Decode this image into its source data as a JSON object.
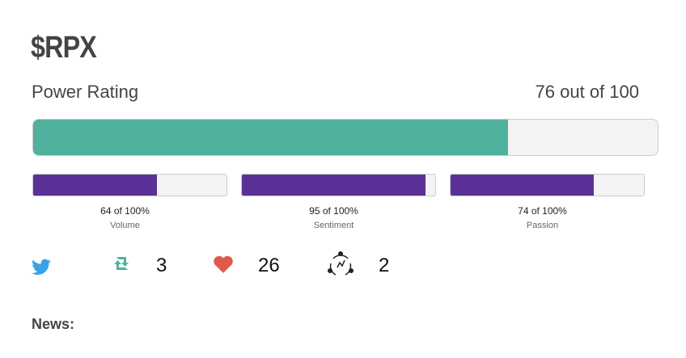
{
  "header": {
    "title": "$RPX"
  },
  "power_rating": {
    "label": "Power Rating",
    "value": 76,
    "max": 100,
    "value_label": "76 out of 100",
    "color": "#50b19e"
  },
  "metrics": {
    "max": 100,
    "color": "#5c3197",
    "items": [
      {
        "value": 64,
        "value_label": "64 of 100%",
        "name": "Volume"
      },
      {
        "value": 95,
        "value_label": "95 of 100%",
        "name": "Sentiment"
      },
      {
        "value": 74,
        "value_label": "74 of 100%",
        "name": "Passion"
      }
    ]
  },
  "stats": {
    "retweets": 3,
    "likes": 26,
    "network": 2
  },
  "news": {
    "label": "News:"
  }
}
